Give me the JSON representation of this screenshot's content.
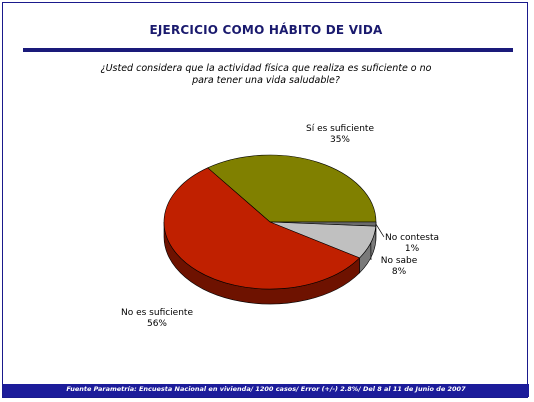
{
  "header": {
    "title": "EJERCICIO COMO HÁBITO DE VIDA",
    "question_line1": "¿Usted considera que la actividad física que realiza es suficiente o no",
    "question_line2": "para tener una vida saludable?"
  },
  "chart_data": {
    "type": "pie",
    "title": "",
    "slices": [
      {
        "label": "Sí es suficiente",
        "value": 35,
        "value_label": "35%",
        "color": "#808000",
        "side_color": "#4a4a00"
      },
      {
        "label": "No contesta",
        "value": 1,
        "value_label": "1%",
        "color": "#6b6b6b",
        "side_color": "#3a3a3a"
      },
      {
        "label": "No sabe",
        "value": 8,
        "value_label": "8%",
        "color": "#c0c0c0",
        "side_color": "#7a7a7a"
      },
      {
        "label": "No es suficiente",
        "value": 56,
        "value_label": "56%",
        "color": "#c02000",
        "side_color": "#6e1200"
      }
    ],
    "style": "3d"
  },
  "footer": {
    "source": "Fuente Parametría: Encuesta Nacional en vivienda/ 1200 casos/ Error (+/-) 2.8%/ Del 8  al 11 de Junio de 2007"
  },
  "colors": {
    "frame": "#1a1a8c",
    "title_rule": "#1a1a7a",
    "footer_bg": "#1c1c9a"
  }
}
